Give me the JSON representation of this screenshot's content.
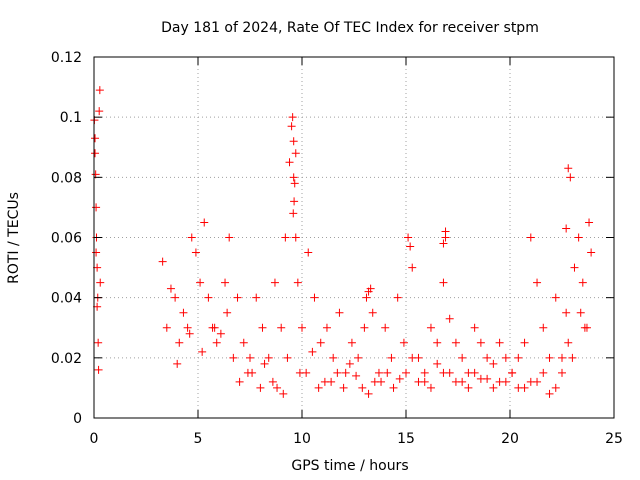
{
  "chart_data": {
    "type": "scatter",
    "title": "Day 181 of 2024, Rate Of TEC Index for receiver stpm",
    "xlabel": "GPS time / hours",
    "ylabel": "ROTI / TECUs",
    "xlim": [
      0,
      25
    ],
    "ylim": [
      0,
      0.12
    ],
    "xticks": [
      0,
      5,
      10,
      15,
      20,
      25
    ],
    "xtick_labels": [
      "0",
      "5",
      "10",
      "15",
      "20",
      "25"
    ],
    "yticks": [
      0,
      0.02,
      0.04,
      0.06,
      0.08,
      0.1,
      0.12
    ],
    "ytick_labels": [
      "0",
      "0.02",
      "0.04",
      "0.06",
      "0.08",
      "0.1",
      "0.12"
    ],
    "grid": true,
    "marker": "plus",
    "series": [
      {
        "name": "ROTI",
        "color": "#ff0000",
        "x": [
          0.02,
          0.05,
          0.08,
          0.1,
          0.12,
          0.15,
          0.18,
          0.2,
          0.22,
          0.25,
          0.28,
          0.3,
          0.05,
          0.1,
          0.15,
          3.3,
          3.5,
          3.7,
          3.9,
          4.1,
          4.3,
          4.5,
          4.7,
          4.9,
          5.1,
          5.3,
          5.5,
          5.7,
          5.9,
          6.1,
          6.3,
          6.5,
          6.7,
          6.9,
          7.2,
          7.5,
          7.8,
          8.1,
          8.4,
          8.7,
          9.0,
          9.2,
          9.4,
          9.5,
          9.6,
          9.7,
          9.8,
          10.0,
          10.3,
          10.6,
          10.9,
          11.2,
          11.5,
          11.8,
          12.1,
          12.4,
          12.7,
          13.0,
          13.2,
          13.4,
          13.7,
          14.0,
          14.3,
          14.6,
          14.9,
          15.1,
          15.3,
          15.6,
          15.9,
          16.2,
          16.5,
          16.8,
          16.9,
          17.1,
          17.4,
          17.7,
          18.0,
          18.3,
          18.6,
          18.9,
          19.2,
          19.5,
          19.8,
          20.1,
          20.4,
          20.7,
          21.0,
          21.3,
          21.6,
          21.9,
          22.2,
          22.5,
          22.7,
          22.9,
          23.1,
          23.3,
          23.5,
          23.7,
          23.9,
          4.0,
          4.6,
          5.2,
          5.8,
          6.4,
          7.0,
          7.6,
          8.2,
          8.8,
          9.3,
          9.9,
          10.5,
          11.1,
          11.7,
          12.3,
          12.9,
          13.5,
          14.1,
          14.7,
          15.3,
          15.9,
          16.5,
          17.1,
          17.7,
          18.3,
          18.9,
          19.5,
          20.1,
          20.7,
          21.3,
          21.9,
          22.5,
          23.0,
          23.6,
          7.4,
          8.0,
          8.6,
          9.1,
          10.2,
          10.8,
          11.4,
          12.0,
          12.6,
          13.2,
          13.8,
          14.4,
          15.0,
          15.6,
          16.2,
          16.8,
          17.4,
          18.0,
          18.6,
          19.2,
          19.8,
          20.4,
          21.0,
          21.6,
          22.2,
          22.8,
          23.4,
          9.55,
          9.6,
          9.65,
          9.7,
          9.62,
          9.58,
          13.1,
          13.3,
          15.2,
          16.8,
          16.9,
          22.7,
          22.8,
          23.8
        ],
        "y": [
          0.099,
          0.093,
          0.081,
          0.07,
          0.06,
          0.05,
          0.04,
          0.025,
          0.016,
          0.102,
          0.109,
          0.045,
          0.088,
          0.055,
          0.037,
          0.052,
          0.03,
          0.043,
          0.04,
          0.025,
          0.035,
          0.03,
          0.06,
          0.055,
          0.045,
          0.065,
          0.04,
          0.03,
          0.025,
          0.028,
          0.045,
          0.06,
          0.02,
          0.04,
          0.025,
          0.02,
          0.04,
          0.03,
          0.02,
          0.045,
          0.03,
          0.06,
          0.085,
          0.097,
          0.08,
          0.06,
          0.045,
          0.03,
          0.055,
          0.04,
          0.025,
          0.03,
          0.02,
          0.035,
          0.015,
          0.025,
          0.02,
          0.03,
          0.042,
          0.035,
          0.015,
          0.03,
          0.02,
          0.04,
          0.025,
          0.06,
          0.05,
          0.02,
          0.015,
          0.03,
          0.025,
          0.045,
          0.06,
          0.033,
          0.025,
          0.02,
          0.015,
          0.03,
          0.025,
          0.02,
          0.018,
          0.025,
          0.02,
          0.015,
          0.02,
          0.025,
          0.06,
          0.045,
          0.03,
          0.02,
          0.04,
          0.02,
          0.035,
          0.08,
          0.05,
          0.06,
          0.045,
          0.03,
          0.055,
          0.018,
          0.028,
          0.022,
          0.03,
          0.035,
          0.012,
          0.015,
          0.018,
          0.01,
          0.02,
          0.015,
          0.022,
          0.012,
          0.015,
          0.018,
          0.01,
          0.012,
          0.015,
          0.013,
          0.02,
          0.012,
          0.018,
          0.015,
          0.012,
          0.015,
          0.013,
          0.012,
          0.015,
          0.01,
          0.012,
          0.008,
          0.015,
          0.02,
          0.03,
          0.015,
          0.01,
          0.012,
          0.008,
          0.015,
          0.01,
          0.012,
          0.01,
          0.014,
          0.008,
          0.012,
          0.01,
          0.015,
          0.012,
          0.01,
          0.015,
          0.012,
          0.01,
          0.013,
          0.01,
          0.012,
          0.01,
          0.012,
          0.015,
          0.01,
          0.025,
          0.035,
          0.1,
          0.092,
          0.078,
          0.088,
          0.072,
          0.068,
          0.04,
          0.043,
          0.057,
          0.058,
          0.062,
          0.063,
          0.083,
          0.065
        ]
      }
    ]
  }
}
